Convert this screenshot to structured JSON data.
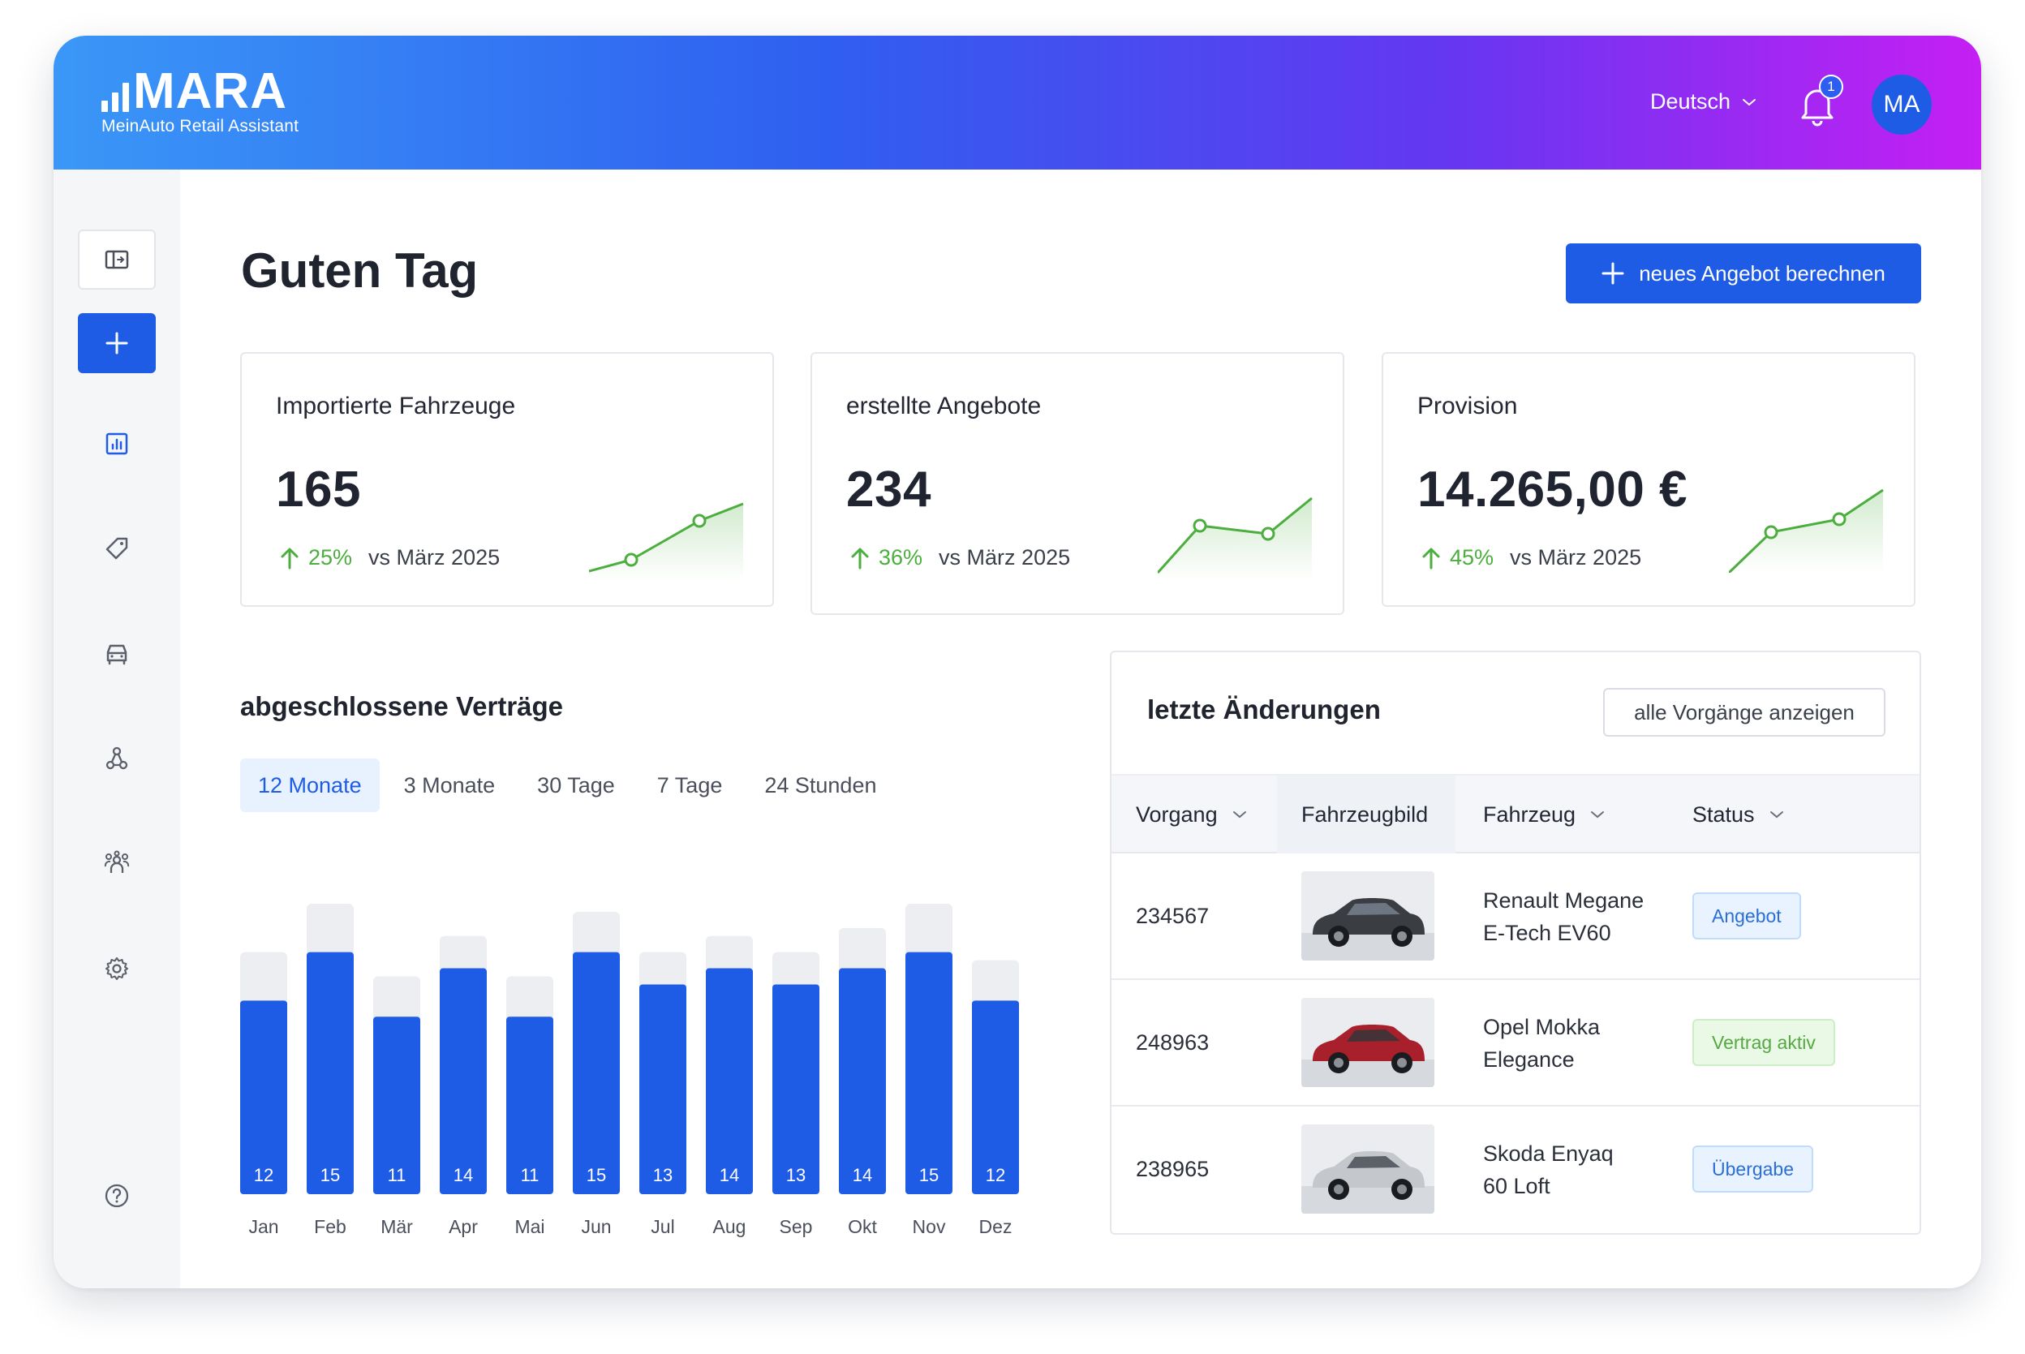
{
  "header": {
    "logo_text": "MARA",
    "logo_subtitle": "MeinAuto Retail Assistant",
    "language": "Deutsch",
    "notification_count": "1",
    "avatar_initials": "MA"
  },
  "main": {
    "greeting": "Guten Tag",
    "new_offer_button": "neues Angebot berechnen"
  },
  "kpis": [
    {
      "title": "Importierte Fahrzeuge",
      "value": "165",
      "change": "25%",
      "comparison": "vs März 2025"
    },
    {
      "title": "erstellte Angebote",
      "value": "234",
      "change": "36%",
      "comparison": "vs März 2025"
    },
    {
      "title": "Provision",
      "value": "14.265,00 €",
      "change": "45%",
      "comparison": "vs März 2025"
    }
  ],
  "contracts": {
    "title": "abgeschlossene Verträge",
    "tabs": [
      "12 Monate",
      "3 Monate",
      "30 Tage",
      "7 Tage",
      "24 Stunden"
    ],
    "active_tab": "12 Monate"
  },
  "chart_data": {
    "type": "bar",
    "categories": [
      "Jan",
      "Feb",
      "Mär",
      "Apr",
      "Mai",
      "Jun",
      "Jul",
      "Aug",
      "Sep",
      "Okt",
      "Nov",
      "Dez"
    ],
    "series": [
      {
        "values": [
          12,
          15,
          11,
          14,
          11,
          15,
          13,
          14,
          13,
          14,
          15,
          12
        ],
        "color": "#1f5ce6"
      },
      {
        "values": [
          15,
          18,
          13.5,
          16,
          13.5,
          17.5,
          15,
          16,
          15,
          16.5,
          18,
          14.5
        ],
        "color": "#eceef2"
      }
    ],
    "ylim": [
      0,
      18
    ],
    "grid": false
  },
  "recent": {
    "title": "letzte Änderungen",
    "show_all_button": "alle Vorgänge anzeigen",
    "columns": [
      "Vorgang",
      "Fahrzeugbild",
      "Fahrzeug",
      "Status"
    ],
    "rows": [
      {
        "id": "234567",
        "vehicle_line1": "Renault Megane",
        "vehicle_line2": "E-Tech EV60",
        "status": "Angebot",
        "status_color": "blue",
        "car_color": "#3a3d42"
      },
      {
        "id": "248963",
        "vehicle_line1": "Opel Mokka",
        "vehicle_line2": "Elegance",
        "status": "Vertrag aktiv",
        "status_color": "green",
        "car_color": "#a8202b"
      },
      {
        "id": "238965",
        "vehicle_line1": "Skoda Enyaq",
        "vehicle_line2": "60 Loft",
        "status": "Übergabe",
        "status_color": "blue",
        "car_color": "#c4c8cc"
      }
    ]
  },
  "sidebar": {
    "icons": [
      "collapse-sidebar-icon",
      "plus-icon",
      "chart-icon",
      "tag-icon",
      "car-icon",
      "network-icon",
      "team-icon",
      "gear-icon",
      "help-icon"
    ]
  },
  "colors": {
    "accent": "#1f5ce6",
    "positive": "#4cae3e",
    "header_gradient_start": "#3a97f7",
    "header_gradient_end": "#c51ff3"
  }
}
